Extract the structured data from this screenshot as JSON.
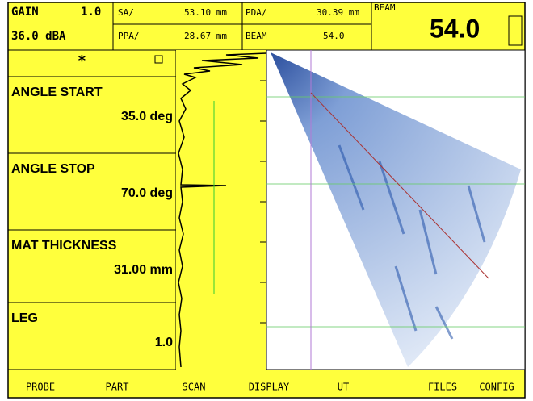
{
  "header": {
    "gain_label": "GAIN",
    "gain_value": "1.0",
    "db_value": "36.0 dBA",
    "sa_label": "SA/",
    "sa_value": "53.10 mm",
    "pda_label": "PDA/",
    "pda_value": "30.39 mm",
    "ppa_label": "PPA/",
    "ppa_value": "28.67 mm",
    "beam_readout": {
      "label": "BEAM",
      "value": "54.0"
    },
    "beam_big": {
      "label": "BEAM",
      "value": "54.0"
    }
  },
  "params": [
    {
      "label": "ANGLE START",
      "value": "35.0 deg"
    },
    {
      "label": "ANGLE STOP",
      "value": "70.0 deg"
    },
    {
      "label": "MAT THICKNESS",
      "value": "31.00 mm"
    },
    {
      "label": "LEG",
      "value": "1.0"
    }
  ],
  "menu": [
    "PROBE",
    "PART",
    "SCAN",
    "DISPLAY",
    "UT",
    "FILES",
    "CONFIG"
  ]
}
